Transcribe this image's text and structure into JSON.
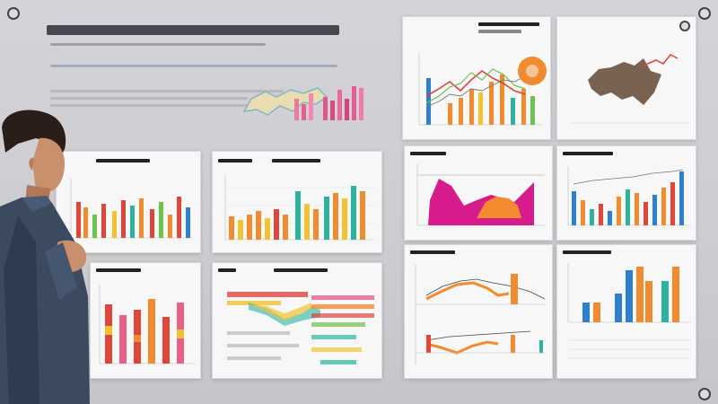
{
  "scene": {
    "title": "",
    "colors": {
      "orange": "#f28a2e",
      "blue": "#2f7fd0",
      "teal": "#2bb3a0",
      "magenta": "#d81b8c",
      "yellow": "#f2c230",
      "red": "#e0453a",
      "green": "#6cc24a",
      "brown": "#7a6250"
    }
  },
  "panels": [
    {
      "name": "top-center-bar-chart",
      "kind": "bar"
    },
    {
      "name": "top-right-line-bar-chart",
      "kind": "line-bar"
    },
    {
      "name": "top-right-map",
      "kind": "map"
    },
    {
      "name": "mid-left-bar-chart",
      "kind": "bar"
    },
    {
      "name": "mid-center-bar-chart",
      "kind": "bar"
    },
    {
      "name": "mid-right-area-chart",
      "kind": "area"
    },
    {
      "name": "mid-far-right-bar-chart",
      "kind": "bar"
    },
    {
      "name": "bottom-left-bar-chart",
      "kind": "bar"
    },
    {
      "name": "bottom-center-stacked-chart",
      "kind": "stacked-bar"
    },
    {
      "name": "bottom-right-line-chart",
      "kind": "line"
    },
    {
      "name": "bottom-far-right-bar-chart",
      "kind": "bar"
    }
  ]
}
